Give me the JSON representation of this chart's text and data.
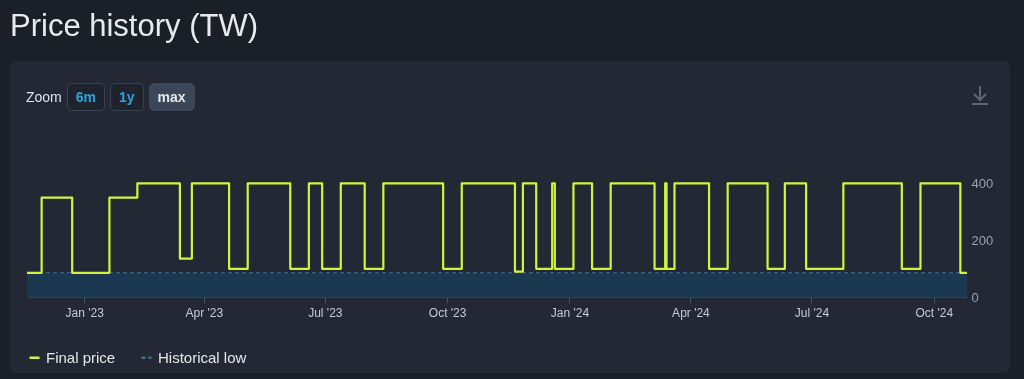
{
  "chart_data": {
    "type": "step",
    "title": "Price history (TW)",
    "annotations": [
      "Zoom",
      "6m",
      "1y",
      "max"
    ],
    "x": [
      "2022-11-19",
      "2022-11-30",
      "2022-12-23",
      "2023-01-20",
      "2023-02-10",
      "2023-03-14",
      "2023-03-23",
      "2023-04-20",
      "2023-05-04",
      "2023-06-05",
      "2023-06-19",
      "2023-06-29",
      "2023-07-13",
      "2023-07-31",
      "2023-08-14",
      "2023-09-28",
      "2023-10-12",
      "2023-11-21",
      "2023-11-27",
      "2023-12-07",
      "2023-12-19",
      "2023-12-21",
      "2024-01-04",
      "2024-01-18",
      "2024-02-01",
      "2024-03-05",
      "2024-03-13",
      "2024-03-14",
      "2024-03-20",
      "2024-04-15",
      "2024-04-29",
      "2024-05-29",
      "2024-06-11",
      "2024-06-27",
      "2024-07-25",
      "2024-09-07",
      "2024-09-21",
      "2024-10-21",
      "2024-10-26"
    ],
    "series": [
      {
        "name": "Final price",
        "color": "#d2f53c",
        "values": [
          85,
          349,
          85,
          349,
          399,
          135,
          399,
          99,
          399,
          99,
          399,
          99,
          399,
          99,
          399,
          99,
          399,
          89,
          399,
          99,
          399,
          99,
          399,
          99,
          399,
          99,
          399,
          99,
          399,
          99,
          399,
          99,
          399,
          99,
          399,
          99,
          399,
          85,
          85
        ]
      }
    ],
    "xlim": [
      "2022-11-19",
      "2024-10-26"
    ],
    "xticks": [
      {
        "value": "2023-01-01",
        "label": "Jan '23"
      },
      {
        "value": "2023-04-01",
        "label": "Apr '23"
      },
      {
        "value": "2023-07-01",
        "label": "Jul '23"
      },
      {
        "value": "2023-10-01",
        "label": "Oct '23"
      },
      {
        "value": "2024-01-01",
        "label": "Jan '24"
      },
      {
        "value": "2024-04-01",
        "label": "Apr '24"
      },
      {
        "value": "2024-07-01",
        "label": "Jul '24"
      },
      {
        "value": "2024-10-01",
        "label": "Oct '24"
      }
    ],
    "ylim": [
      0,
      400
    ],
    "yticks": [
      0,
      200,
      400
    ],
    "ref_lines": [
      {
        "axis": "y",
        "value": 85,
        "label": "Historical low",
        "color": "#3f6f92",
        "line_style": "dashed"
      }
    ],
    "bands": [
      {
        "axis": "y",
        "from": 0,
        "to": 85,
        "color": "#1b3851"
      }
    ],
    "legend": "bottom"
  }
}
